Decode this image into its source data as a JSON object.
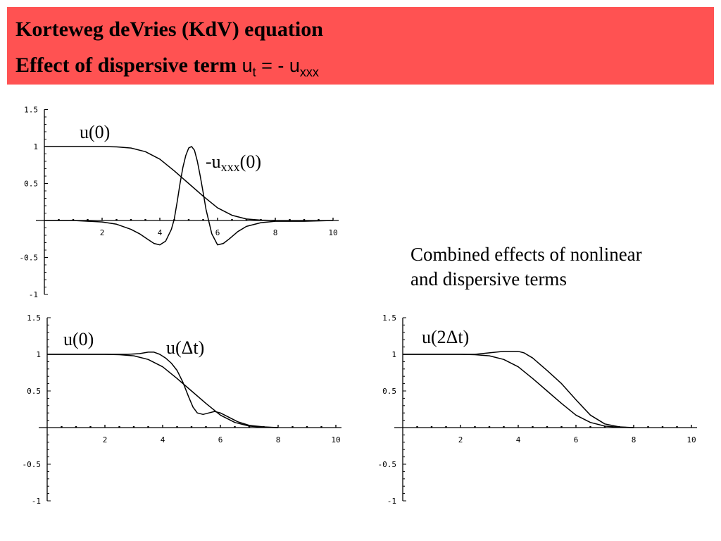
{
  "header": {
    "bg_color": "#ff5252",
    "line1": "Korteweg deVries (KdV) equation",
    "line2_prefix": "Effect of dispersive term",
    "eq_u1": "u",
    "eq_sub1": "t",
    "eq_mid": " = - u",
    "eq_sub2": "xxx"
  },
  "note": {
    "line1": "Combined effects of nonlinear",
    "line2": "and dispersive terms"
  },
  "chart_data": [
    {
      "type": "line",
      "xlim": [
        0,
        10
      ],
      "ylim": [
        -1,
        1.5
      ],
      "xticks": [
        "2",
        "4",
        "6",
        "8",
        "10"
      ],
      "yticks": [
        "1.5",
        "1",
        "0.5",
        "-0.5",
        "-1"
      ],
      "annotations": [
        {
          "main": "u(0)",
          "sub": "",
          "after": "",
          "prefix": ""
        },
        {
          "prefix": "-",
          "main": "u",
          "sub": "xxx",
          "after": "(0)"
        }
      ],
      "series": [
        {
          "x": [
            0,
            1,
            2,
            2.5,
            3,
            3.5,
            4,
            4.5,
            5,
            5.5,
            6,
            6.5,
            7,
            7.5,
            8
          ],
          "y": [
            1,
            1,
            1,
            0.995,
            0.98,
            0.93,
            0.83,
            0.67,
            0.5,
            0.33,
            0.17,
            0.07,
            0.02,
            0.005,
            0
          ]
        },
        {
          "x": [
            0,
            1,
            2,
            2.5,
            3,
            3.3,
            3.6,
            3.8,
            4.0,
            4.2,
            4.4,
            4.5,
            4.6,
            4.7,
            4.8,
            4.9,
            5.0,
            5.1,
            5.2,
            5.3,
            5.4,
            5.5,
            5.6,
            5.8,
            6.0,
            6.2,
            6.4,
            6.7,
            7,
            7.5,
            8,
            9,
            10
          ],
          "y": [
            0,
            0,
            -0.02,
            -0.05,
            -0.12,
            -0.18,
            -0.26,
            -0.31,
            -0.33,
            -0.28,
            -0.12,
            0.02,
            0.25,
            0.5,
            0.72,
            0.88,
            0.98,
            1.0,
            0.95,
            0.8,
            0.6,
            0.38,
            0.15,
            -0.18,
            -0.33,
            -0.31,
            -0.25,
            -0.15,
            -0.08,
            -0.03,
            -0.01,
            -0.01,
            0
          ]
        }
      ]
    },
    {
      "type": "line",
      "xlim": [
        0,
        10
      ],
      "ylim": [
        -1,
        1.5
      ],
      "xticks": [
        "2",
        "4",
        "6",
        "8",
        "10"
      ],
      "yticks": [
        "1.5",
        "1",
        "0.5",
        "-0.5",
        "-1"
      ],
      "annotations": [
        {
          "prefix": "",
          "main": "u(0)",
          "sub": "",
          "after": ""
        },
        {
          "prefix": "",
          "main": "u(Δt)",
          "sub": "",
          "after": ""
        }
      ],
      "series": [
        {
          "x": [
            0,
            1,
            2,
            2.5,
            3,
            3.5,
            4,
            4.5,
            5,
            5.5,
            6,
            6.5,
            7,
            7.5,
            8
          ],
          "y": [
            1,
            1,
            1,
            0.995,
            0.98,
            0.93,
            0.83,
            0.67,
            0.5,
            0.33,
            0.17,
            0.07,
            0.02,
            0.005,
            0
          ]
        },
        {
          "x": [
            0,
            1,
            2,
            2.8,
            3.2,
            3.5,
            3.7,
            3.9,
            4.1,
            4.3,
            4.5,
            4.7,
            4.9,
            5.05,
            5.2,
            5.4,
            5.6,
            5.8,
            6.0,
            6.3,
            6.6,
            7.0,
            7.5,
            8
          ],
          "y": [
            1,
            1,
            1,
            1.0,
            1.01,
            1.03,
            1.03,
            1.0,
            0.95,
            0.88,
            0.78,
            0.62,
            0.42,
            0.28,
            0.2,
            0.18,
            0.2,
            0.22,
            0.2,
            0.14,
            0.08,
            0.03,
            0.01,
            0
          ]
        }
      ]
    },
    {
      "type": "line",
      "xlim": [
        0,
        10
      ],
      "ylim": [
        -1,
        1.5
      ],
      "xticks": [
        "2",
        "4",
        "6",
        "8",
        "10"
      ],
      "yticks": [
        "1.5",
        "1",
        "0.5",
        "-0.5",
        "-1"
      ],
      "annotations": [
        {
          "prefix": "",
          "main": "u(2Δt)",
          "sub": "",
          "after": ""
        }
      ],
      "series": [
        {
          "x": [
            0,
            1,
            2,
            2.5,
            3,
            3.5,
            4,
            4.5,
            5,
            5.5,
            6,
            6.5,
            7,
            7.5,
            8
          ],
          "y": [
            1,
            1,
            1,
            0.995,
            0.98,
            0.93,
            0.83,
            0.67,
            0.5,
            0.33,
            0.17,
            0.07,
            0.02,
            0.005,
            0
          ]
        },
        {
          "x": [
            0,
            1,
            2,
            2.5,
            3,
            3.5,
            4,
            4.2,
            4.5,
            5,
            5.5,
            6,
            6.5,
            7,
            7.5,
            8
          ],
          "y": [
            1,
            1,
            1,
            1.0,
            1.02,
            1.04,
            1.04,
            1.02,
            0.95,
            0.78,
            0.6,
            0.38,
            0.17,
            0.05,
            0.01,
            0
          ]
        }
      ]
    }
  ]
}
